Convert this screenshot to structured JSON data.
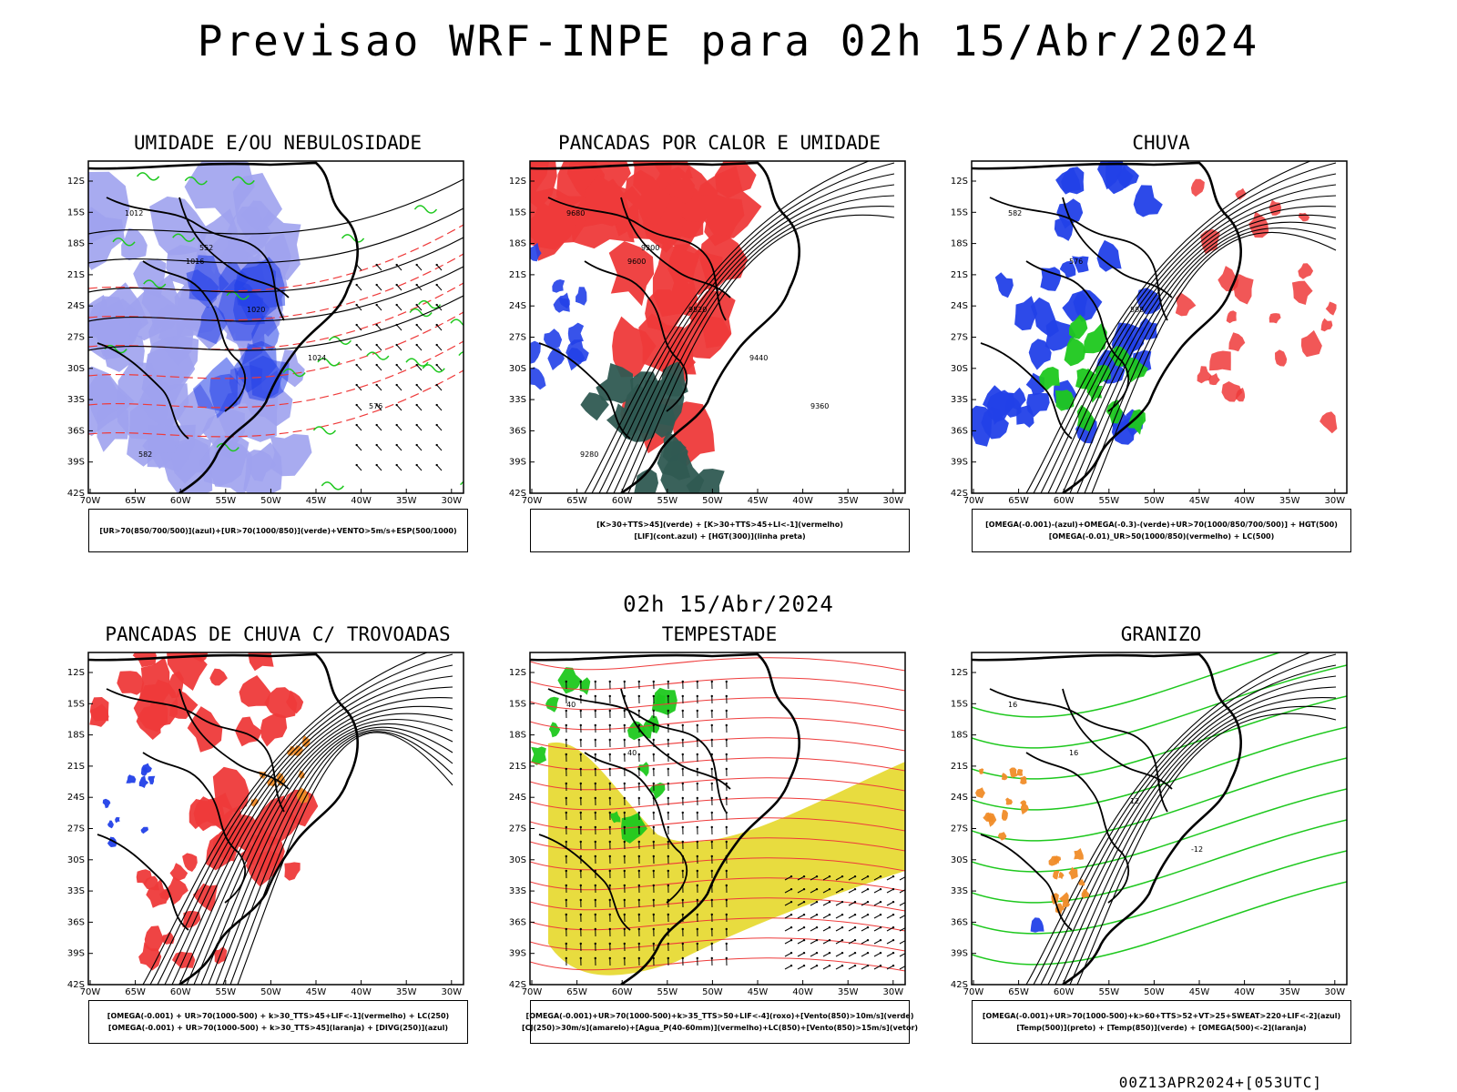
{
  "header": {
    "main_title": "Previsao WRF-INPE  para 02h 15/Abr/2024",
    "sub_title": "02h 15/Abr/2024",
    "footer": "00Z13APR2024+[053UTC]"
  },
  "axes": {
    "lat_labels": [
      "12S",
      "15S",
      "18S",
      "21S",
      "24S",
      "27S",
      "30S",
      "33S",
      "36S",
      "39S",
      "42S"
    ],
    "lon_labels": [
      "70W",
      "65W",
      "60W",
      "55W",
      "50W",
      "45W",
      "40W",
      "35W",
      "30W"
    ]
  },
  "colors": {
    "blue": "#2240e8",
    "lavender": "#9fa2ee",
    "green": "#1ec81e",
    "red": "#ee3a3a",
    "dark_teal": "#2f5a52",
    "yellow": "#e6d82a",
    "orange": "#f08c28",
    "black": "#000000"
  },
  "panels": [
    {
      "id": "umidade",
      "title": "UMIDADE E/OU NEBULOSIDADE",
      "legend": [
        "[UR>70(850/700/500)](azul)+[UR>70(1000/850)](verde)+VENTO>5m/s+ESP(500/1000)"
      ],
      "contour_labels": [
        "1012",
        "1016",
        "1020",
        "1024",
        "576",
        "582",
        "552"
      ]
    },
    {
      "id": "pancadas-calor",
      "title": "PANCADAS POR CALOR E UMIDADE",
      "legend": [
        "[K>30+TTS>45](verde)  +  [K>30+TTS>45+LI<-1](vermelho)",
        "[LIF](cont.azul)  +  [HGT(300)](linha preta)"
      ],
      "contour_labels": [
        "9680",
        "9600",
        "9520",
        "9440",
        "9360",
        "9280",
        "9200"
      ]
    },
    {
      "id": "chuva",
      "title": "CHUVA",
      "legend": [
        "[OMEGA(-0.001)-(azul)+OMEGA(-0.3)-(verde)+UR>70(1000/850/700/500)]  +  HGT(500)",
        "[OMEGA(-0.01)_UR>50(1000/850)(vermelho)  +  LC(500)"
      ],
      "contour_labels": [
        "582",
        "576",
        "588"
      ]
    },
    {
      "id": "trovoadas",
      "title": "PANCADAS DE CHUVA C/ TROVOADAS",
      "legend": [
        "[OMEGA(-0.001)  +  UR>70(1000-500)  +  k>30_TTS>45+LIF<-1](vermelho)  +  LC(250)",
        "[OMEGA(-0.001)  +  UR>70(1000-500)  +  k>30_TTS>45](laranja)  +  [DIVG(250)](azul)"
      ],
      "contour_labels": []
    },
    {
      "id": "tempestade",
      "title": "TEMPESTADE",
      "legend": [
        "[OMEGA(-0.001)+UR>70(1000-500)+k>35_TTS>50+LIF<-4](roxo)+[Vento(850)>10m/s](verde)",
        "[CJ(250)>30m/s](amarelo)+[Agua_P(40-60mm)](vermelho)+LC(850)+[Vento(850)>15m/s](vetor)"
      ],
      "contour_labels": [
        "40",
        "40"
      ]
    },
    {
      "id": "granizo",
      "title": "GRANIZO",
      "legend": [
        "[OMEGA(-0.001)+UR>70(1000-500)+k>60+TTS>52+VT>25+SWEAT>220+LIF<-2](azul)",
        "[Temp(500)](preto)  +  [Temp(850)](verde)  +  [OMEGA(500)<-2](laranja)"
      ],
      "contour_labels": [
        "16",
        "16",
        "12",
        "-12"
      ]
    }
  ]
}
